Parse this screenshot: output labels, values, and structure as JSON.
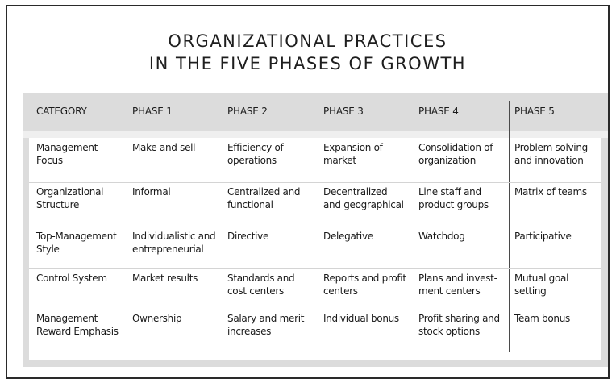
{
  "title": {
    "line1": "ORGANIZATIONAL PRACTICES",
    "line2": "IN THE FIVE PHASES OF GROWTH"
  },
  "table": {
    "headers": [
      "CATEGORY",
      "PHASE 1",
      "PHASE 2",
      "PHASE 3",
      "PHASE 4",
      "PHASE 5"
    ],
    "rows": [
      {
        "category": [
          "Management",
          "Focus"
        ],
        "cells": [
          [
            "Make and sell"
          ],
          [
            "Efficiency of",
            "operations"
          ],
          [
            "Expansion of",
            "market"
          ],
          [
            "Consolidation of",
            "organization"
          ],
          [
            "Problem solving",
            "and innovation"
          ]
        ]
      },
      {
        "category": [
          "Organizational",
          "Structure"
        ],
        "cells": [
          [
            "Informal"
          ],
          [
            "Centralized and",
            "functional"
          ],
          [
            "Decentralized",
            "and geographical"
          ],
          [
            "Line staff and",
            "product groups"
          ],
          [
            "Matrix of teams"
          ]
        ]
      },
      {
        "category": [
          "Top-Management",
          "Style"
        ],
        "cells": [
          [
            "Individualistic and",
            "entrepreneurial"
          ],
          [
            "Directive"
          ],
          [
            "Delegative"
          ],
          [
            "Watchdog"
          ],
          [
            "Participative"
          ]
        ]
      },
      {
        "category": [
          "Control System"
        ],
        "cells": [
          [
            "Market results"
          ],
          [
            "Standards and",
            "cost centers"
          ],
          [
            "Reports and profit",
            "centers"
          ],
          [
            "Plans and invest-",
            "ment centers"
          ],
          [
            "Mutual goal",
            "setting"
          ]
        ]
      },
      {
        "category": [
          "Management",
          "Reward Emphasis"
        ],
        "cells": [
          [
            "Ownership"
          ],
          [
            "Salary and merit",
            "increases"
          ],
          [
            "Individual bonus"
          ],
          [
            "Profit sharing and",
            "stock options"
          ],
          [
            "Team bonus"
          ]
        ]
      }
    ]
  }
}
